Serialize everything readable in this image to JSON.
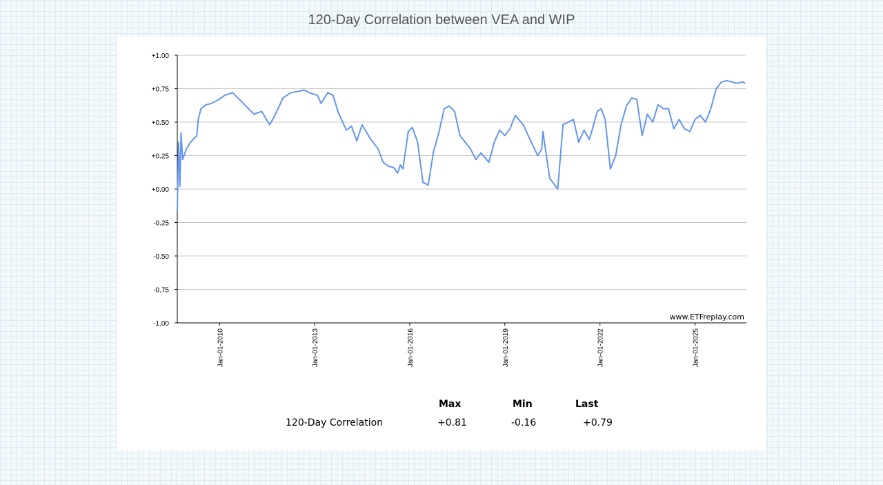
{
  "page": {
    "title": "120-Day Correlation between VEA and WIP"
  },
  "chart_data": {
    "type": "line",
    "title": "120-Day Correlation between VEA and WIP",
    "xlabel": "",
    "ylabel": "",
    "ylim": [
      -1.0,
      1.0
    ],
    "xlim": [
      "2008-09-01",
      "2026-08-15"
    ],
    "y_ticks": [
      "+1.00",
      "+0.75",
      "+0.50",
      "+0.25",
      "+0.00",
      "-0.25",
      "-0.50",
      "-0.75",
      "-1.00"
    ],
    "x_ticks": [
      "Jan-01-2010",
      "Jan-01-2013",
      "Jan-01-2016",
      "Jan-01-2019",
      "Jan-01-2022",
      "Jan-01-2025"
    ],
    "watermark": "www.ETFreplay.com",
    "grid": true,
    "line_color": "#6495ed",
    "series": [
      {
        "x": [
          "2008-09-01",
          "2008-09-15",
          "2008-10-01",
          "2008-10-15",
          "2008-11-01",
          "2008-12-15",
          "2009-02-01",
          "2009-03-15",
          "2009-04-15",
          "2009-05-01",
          "2009-06-01",
          "2009-08-01",
          "2009-10-01",
          "2009-12-01",
          "2010-03-01",
          "2010-06-01",
          "2010-09-01",
          "2010-11-01",
          "2011-02-01",
          "2011-05-01",
          "2011-08-01",
          "2011-10-01",
          "2012-01-01",
          "2012-04-01",
          "2012-07-01",
          "2012-09-01",
          "2012-11-01",
          "2013-02-01",
          "2013-03-15",
          "2013-06-01",
          "2013-08-01",
          "2013-10-01",
          "2014-01-01",
          "2014-03-01",
          "2014-05-01",
          "2014-07-01",
          "2014-10-01",
          "2015-01-01",
          "2015-03-01",
          "2015-05-01",
          "2015-07-01",
          "2015-08-15",
          "2015-09-15",
          "2015-10-15",
          "2015-12-15",
          "2016-02-01",
          "2016-04-01",
          "2016-06-01",
          "2016-08-01",
          "2016-10-01",
          "2016-12-01",
          "2017-02-01",
          "2017-04-01",
          "2017-06-01",
          "2017-08-01",
          "2017-10-01",
          "2017-12-01",
          "2018-02-01",
          "2018-04-01",
          "2018-07-01",
          "2018-09-01",
          "2018-11-01",
          "2019-01-01",
          "2019-03-01",
          "2019-05-01",
          "2019-08-01",
          "2019-11-01",
          "2020-01-15",
          "2020-03-01",
          "2020-03-15",
          "2020-04-01",
          "2020-06-01",
          "2020-09-01",
          "2020-11-01",
          "2021-01-01",
          "2021-03-01",
          "2021-05-01",
          "2021-07-01",
          "2021-09-01",
          "2021-10-15",
          "2021-12-01",
          "2022-01-15",
          "2022-03-01",
          "2022-05-01",
          "2022-07-01",
          "2022-09-01",
          "2022-11-01",
          "2023-01-01",
          "2023-03-01",
          "2023-05-01",
          "2023-07-01",
          "2023-09-01",
          "2023-11-01",
          "2024-01-01",
          "2024-03-01",
          "2024-05-01",
          "2024-07-01",
          "2024-09-01",
          "2024-11-01",
          "2025-01-01",
          "2025-03-01",
          "2025-05-01",
          "2025-07-01",
          "2025-09-01",
          "2025-11-01",
          "2026-01-01",
          "2026-03-01",
          "2026-05-01",
          "2026-07-01",
          "2026-08-01"
        ],
        "y": [
          -0.16,
          0.35,
          0.02,
          0.42,
          0.22,
          0.3,
          0.35,
          0.38,
          0.4,
          0.52,
          0.6,
          0.63,
          0.64,
          0.66,
          0.7,
          0.72,
          0.66,
          0.62,
          0.56,
          0.58,
          0.48,
          0.55,
          0.68,
          0.72,
          0.73,
          0.74,
          0.72,
          0.7,
          0.64,
          0.72,
          0.7,
          0.57,
          0.44,
          0.47,
          0.36,
          0.48,
          0.38,
          0.3,
          0.2,
          0.17,
          0.16,
          0.12,
          0.18,
          0.15,
          0.43,
          0.46,
          0.35,
          0.05,
          0.03,
          0.28,
          0.42,
          0.6,
          0.62,
          0.58,
          0.4,
          0.35,
          0.3,
          0.22,
          0.27,
          0.2,
          0.35,
          0.44,
          0.4,
          0.45,
          0.55,
          0.48,
          0.35,
          0.25,
          0.3,
          0.43,
          0.35,
          0.08,
          0.0,
          0.48,
          0.5,
          0.52,
          0.35,
          0.44,
          0.37,
          0.47,
          0.58,
          0.6,
          0.52,
          0.15,
          0.25,
          0.48,
          0.62,
          0.68,
          0.67,
          0.4,
          0.56,
          0.5,
          0.63,
          0.6,
          0.6,
          0.45,
          0.52,
          0.45,
          0.43,
          0.52,
          0.55,
          0.5,
          0.6,
          0.75,
          0.8,
          0.81,
          0.8,
          0.79,
          0.8,
          0.79
        ]
      }
    ]
  },
  "stats": {
    "headers": [
      "Max",
      "Min",
      "Last"
    ],
    "row_label": "120-Day Correlation",
    "values": [
      "+0.81",
      "-0.16",
      "+0.79"
    ]
  }
}
